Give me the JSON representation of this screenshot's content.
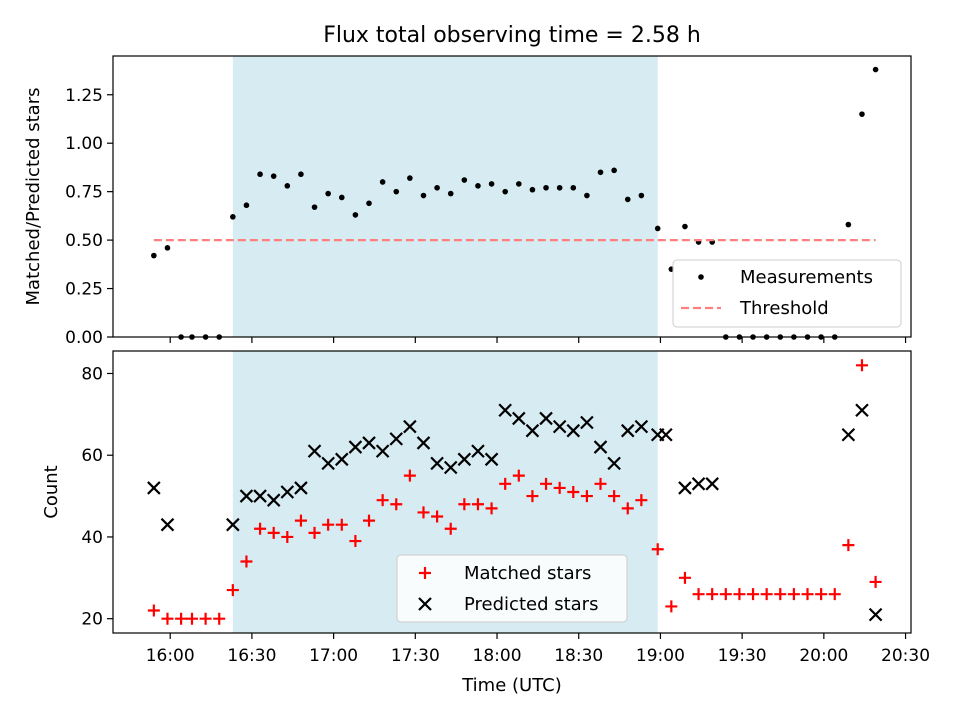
{
  "chart_data": [
    {
      "type": "scatter",
      "title": "Flux total observing time = 2.58 h",
      "xlabel": "",
      "ylabel": "Matched/Predicted stars",
      "ylim": [
        0,
        1.45
      ],
      "xlim": [
        "15:39",
        "20:32"
      ],
      "y_ticks": [
        "0.00",
        "0.25",
        "0.50",
        "0.75",
        "1.00",
        "1.25"
      ],
      "shaded_interval": [
        "16:23",
        "18:59"
      ],
      "shade_color": "#add8e6",
      "legend": {
        "placement": "lower right",
        "entries": [
          {
            "label": "Measurements",
            "marker": "dot",
            "color": "#000000"
          },
          {
            "label": "Threshold",
            "marker": "dashed-line",
            "color": "#ff7f7f"
          }
        ]
      },
      "series": [
        {
          "name": "Measurements",
          "color": "#000000",
          "x": [
            "15:54",
            "15:59",
            "16:04",
            "16:08",
            "16:13",
            "16:18",
            "16:23",
            "16:28",
            "16:33",
            "16:38",
            "16:43",
            "16:48",
            "16:53",
            "16:58",
            "17:03",
            "17:08",
            "17:13",
            "17:18",
            "17:23",
            "17:28",
            "17:33",
            "17:38",
            "17:43",
            "17:48",
            "17:53",
            "17:58",
            "18:03",
            "18:08",
            "18:13",
            "18:18",
            "18:23",
            "18:28",
            "18:33",
            "18:38",
            "18:43",
            "18:48",
            "18:53",
            "18:59",
            "19:04",
            "19:09",
            "19:14",
            "19:19",
            "19:24",
            "19:29",
            "19:34",
            "19:39",
            "19:44",
            "19:49",
            "19:54",
            "19:59",
            "20:04",
            "20:09",
            "20:14",
            "20:19"
          ],
          "y": [
            0.42,
            0.46,
            0.0,
            0.0,
            0.0,
            0.0,
            0.62,
            0.68,
            0.84,
            0.83,
            0.78,
            0.84,
            0.67,
            0.74,
            0.72,
            0.63,
            0.69,
            0.8,
            0.75,
            0.82,
            0.73,
            0.77,
            0.74,
            0.81,
            0.78,
            0.79,
            0.75,
            0.79,
            0.76,
            0.77,
            0.77,
            0.77,
            0.73,
            0.85,
            0.86,
            0.71,
            0.73,
            0.56,
            0.35,
            0.57,
            0.49,
            0.49,
            0.0,
            0.0,
            0.0,
            0.0,
            0.0,
            0.0,
            0.0,
            0.0,
            0.0,
            0.58,
            1.15,
            1.38
          ]
        },
        {
          "name": "Threshold",
          "color": "#ff7f7f",
          "style": "dashed",
          "x": [
            "15:54",
            "20:19"
          ],
          "y": [
            0.5,
            0.5
          ]
        }
      ]
    },
    {
      "type": "scatter",
      "xlabel": "Time (UTC)",
      "ylabel": "Count",
      "ylim": [
        16.5,
        85.5
      ],
      "xlim": [
        "15:39",
        "20:32"
      ],
      "x_ticks": [
        "16:00",
        "16:30",
        "17:00",
        "17:30",
        "18:00",
        "18:30",
        "19:00",
        "19:30",
        "20:00",
        "20:30"
      ],
      "y_ticks": [
        "20",
        "40",
        "60",
        "80"
      ],
      "shaded_interval": [
        "16:23",
        "18:59"
      ],
      "shade_color": "#add8e6",
      "legend": {
        "placement": "lower center",
        "entries": [
          {
            "label": "Matched stars",
            "marker": "plus",
            "color": "#ff0000"
          },
          {
            "label": "Predicted stars",
            "marker": "x",
            "color": "#000000"
          }
        ]
      },
      "series": [
        {
          "name": "Matched stars",
          "color": "#ff0000",
          "x": [
            "15:54",
            "15:59",
            "16:04",
            "16:08",
            "16:13",
            "16:18",
            "16:23",
            "16:28",
            "16:33",
            "16:38",
            "16:43",
            "16:48",
            "16:53",
            "16:58",
            "17:03",
            "17:08",
            "17:13",
            "17:18",
            "17:23",
            "17:28",
            "17:33",
            "17:38",
            "17:43",
            "17:48",
            "17:53",
            "17:58",
            "18:03",
            "18:08",
            "18:13",
            "18:18",
            "18:23",
            "18:28",
            "18:33",
            "18:38",
            "18:43",
            "18:48",
            "18:53",
            "18:59",
            "19:04",
            "19:09",
            "19:14",
            "19:19",
            "19:24",
            "19:29",
            "19:34",
            "19:39",
            "19:44",
            "19:49",
            "19:54",
            "19:59",
            "20:04",
            "20:09",
            "20:14",
            "20:19"
          ],
          "y": [
            22,
            20,
            20,
            20,
            20,
            20,
            27,
            34,
            42,
            41,
            40,
            44,
            41,
            43,
            43,
            39,
            44,
            49,
            48,
            55,
            46,
            45,
            42,
            48,
            48,
            47,
            53,
            55,
            50,
            53,
            52,
            51,
            50,
            53,
            50,
            47,
            49,
            37,
            23,
            30,
            26,
            26,
            26,
            26,
            26,
            26,
            26,
            26,
            26,
            26,
            26,
            38,
            82,
            29
          ]
        },
        {
          "name": "Predicted stars",
          "color": "#000000",
          "x": [
            "15:54",
            "15:59",
            "16:23",
            "16:28",
            "16:33",
            "16:38",
            "16:43",
            "16:48",
            "16:53",
            "16:58",
            "17:03",
            "17:08",
            "17:13",
            "17:18",
            "17:23",
            "17:28",
            "17:33",
            "17:38",
            "17:43",
            "17:48",
            "17:53",
            "17:58",
            "18:03",
            "18:08",
            "18:13",
            "18:18",
            "18:23",
            "18:28",
            "18:33",
            "18:38",
            "18:43",
            "18:48",
            "18:53",
            "18:59",
            "19:02",
            "19:09",
            "19:14",
            "19:19",
            "20:09",
            "20:14",
            "20:19"
          ],
          "y": [
            52,
            43,
            43,
            50,
            50,
            49,
            51,
            52,
            61,
            58,
            59,
            62,
            63,
            61,
            64,
            67,
            63,
            58,
            57,
            59,
            61,
            59,
            71,
            69,
            66,
            69,
            67,
            66,
            68,
            62,
            58,
            66,
            67,
            65,
            65,
            52,
            53,
            53,
            65,
            71,
            21
          ]
        }
      ]
    }
  ]
}
